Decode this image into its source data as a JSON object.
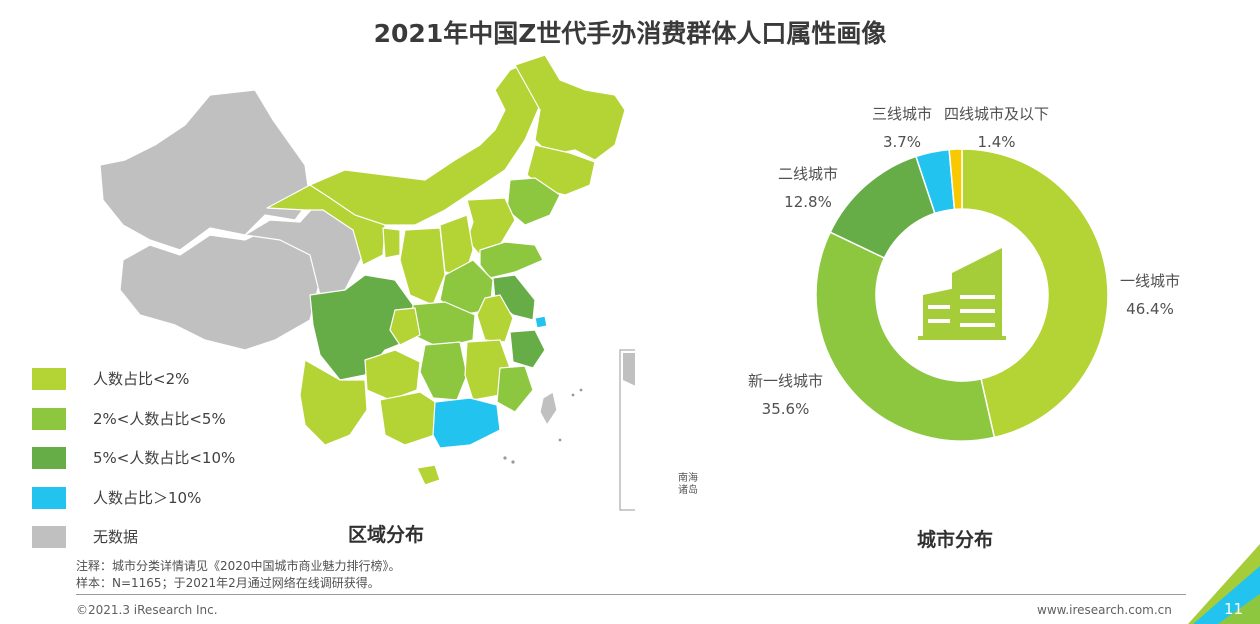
{
  "title": "2021年中国Z世代手办消费群体人口属性画像",
  "colors": {
    "lt2": "#b4d334",
    "pct2to5": "#8dc63f",
    "pct5to10": "#66ad47",
    "gt10": "#22c4ef",
    "nodata": "#c0c0c0",
    "tier4": "#f8c800",
    "accent": "#a5cd39"
  },
  "map": {
    "title": "区域分布",
    "inset_label_line1": "南海",
    "inset_label_line2": "诸岛",
    "legend": [
      {
        "label": "人数占比<2%",
        "color": "#b4d334"
      },
      {
        "label": "2%<人数占比<5%",
        "color": "#8dc63f"
      },
      {
        "label": "5%<人数占比<10%",
        "color": "#66ad47"
      },
      {
        "label": "人数占比＞10%",
        "color": "#22c4ef"
      },
      {
        "label": "无数据",
        "color": "#c0c0c0"
      }
    ]
  },
  "donut": {
    "title": "城市分布",
    "center_icon": "building-icon"
  },
  "chart_data": {
    "type": "pie",
    "style": "donut",
    "title": "城市分布",
    "categories": [
      "一线城市",
      "新一线城市",
      "二线城市",
      "三线城市",
      "四线城市及以下"
    ],
    "values": [
      46.4,
      35.6,
      12.8,
      3.7,
      1.4
    ],
    "value_labels": [
      "46.4%",
      "35.6%",
      "12.8%",
      "3.7%",
      "1.4%"
    ],
    "colors": [
      "#b4d334",
      "#8dc63f",
      "#66ad47",
      "#22c4ef",
      "#f8c800"
    ]
  },
  "notes": {
    "line1": "注释：城市分类详情请见《2020中国城市商业魅力排行榜》。",
    "line2": "样本：N=1165；于2021年2月通过网络在线调研获得。"
  },
  "footer": {
    "copyright": "©2021.3 iResearch Inc.",
    "url": "www.iresearch.com.cn",
    "page": "11"
  }
}
